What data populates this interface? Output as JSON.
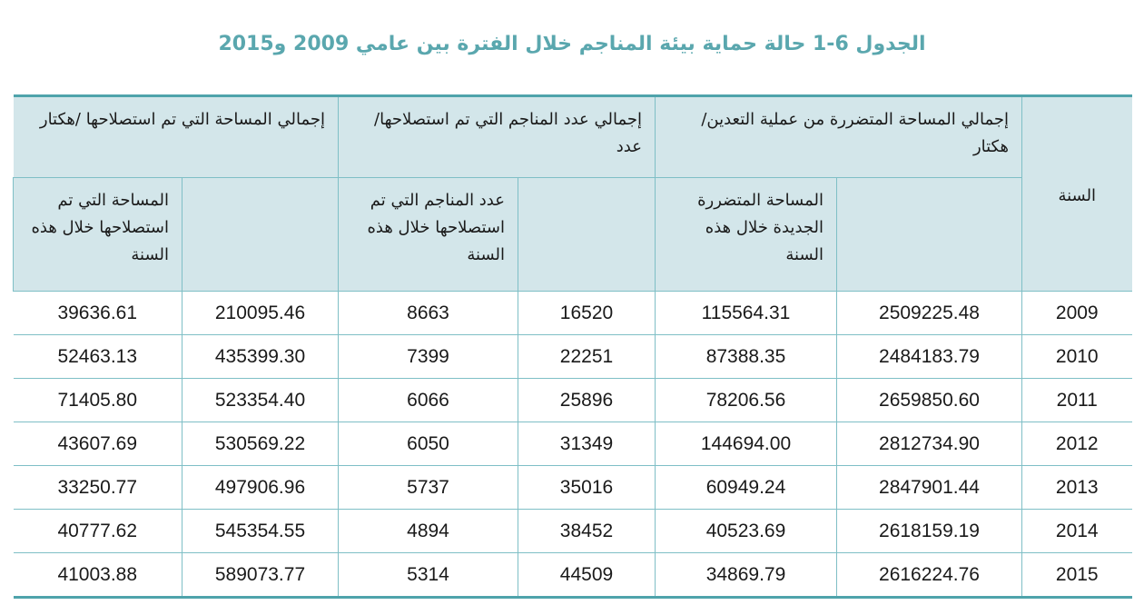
{
  "title": "الجدول 6-1 حالة حماية بيئة المناجم خلال الفترة بين عامي 2009 و2015",
  "header": {
    "year": "السنة",
    "damaged_total": "إجمالي المساحة المتضررة من عملية التعدين/ هكتار",
    "damaged_new": "المساحة المتضررة الجديدة خلال هذه السنة",
    "mines_total": "إجمالي عدد المناجم التي تم استصلاحها/عدد",
    "mines_new": "عدد المناجم التي تم استصلاحها خلال هذه السنة",
    "area_total": "إجمالي المساحة التي تم استصلاحها /هكتار",
    "area_new": "المساحة التي تم استصلاحها خلال هذه السنة"
  },
  "rows": [
    {
      "year": "2009",
      "damaged_total": "2509225.48",
      "damaged_new": "115564.31",
      "mines_total": "16520",
      "mines_new": "8663",
      "area_total": "210095.46",
      "area_new": "39636.61"
    },
    {
      "year": "2010",
      "damaged_total": "2484183.79",
      "damaged_new": "87388.35",
      "mines_total": "22251",
      "mines_new": "7399",
      "area_total": "435399.30",
      "area_new": "52463.13"
    },
    {
      "year": "2011",
      "damaged_total": "2659850.60",
      "damaged_new": "78206.56",
      "mines_total": "25896",
      "mines_new": "6066",
      "area_total": "523354.40",
      "area_new": "71405.80"
    },
    {
      "year": "2012",
      "damaged_total": "2812734.90",
      "damaged_new": "144694.00",
      "mines_total": "31349",
      "mines_new": "6050",
      "area_total": "530569.22",
      "area_new": "43607.69"
    },
    {
      "year": "2013",
      "damaged_total": "2847901.44",
      "damaged_new": "60949.24",
      "mines_total": "35016",
      "mines_new": "5737",
      "area_total": "497906.96",
      "area_new": "33250.77"
    },
    {
      "year": "2014",
      "damaged_total": "2618159.19",
      "damaged_new": "40523.69",
      "mines_total": "38452",
      "mines_new": "4894",
      "area_total": "545354.55",
      "area_new": "40777.62"
    },
    {
      "year": "2015",
      "damaged_total": "2616224.76",
      "damaged_new": "34869.79",
      "mines_total": "44509",
      "mines_new": "5314",
      "area_total": "589073.77",
      "area_new": "41003.88"
    }
  ],
  "colors": {
    "title": "#5aa7ae",
    "header_bg": "#d3e6ea",
    "rule": "#4fa3ab",
    "grid": "#7fbfc6"
  }
}
